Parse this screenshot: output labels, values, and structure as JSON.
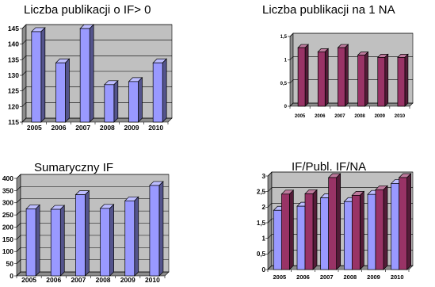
{
  "chart_data": [
    {
      "type": "bar",
      "title": "Liczba publikacji o IF> 0",
      "categories": [
        "2005",
        "2006",
        "2007",
        "2008",
        "2009",
        "2010"
      ],
      "values": [
        144,
        134,
        145,
        127,
        128,
        134
      ],
      "ylim": [
        115,
        145
      ],
      "yticks": [
        115,
        120,
        125,
        130,
        135,
        140,
        145
      ],
      "grid": true,
      "colors": [
        "#9999ff"
      ]
    },
    {
      "type": "bar",
      "title": "Liczba publikacji na 1 NA",
      "categories": [
        "2005",
        "2006",
        "2007",
        "2008",
        "2009",
        "2010"
      ],
      "values": [
        1.26,
        1.17,
        1.26,
        1.1,
        1.05,
        1.05
      ],
      "ylim": [
        0,
        1.5
      ],
      "yticks": [
        "0",
        "0,5",
        "1",
        "1,5"
      ],
      "grid": true,
      "colors": [
        "#993366"
      ]
    },
    {
      "type": "bar",
      "title": "Sumaryczny IF",
      "categories": [
        "2005",
        "2006",
        "2007",
        "2008",
        "2009",
        "2010"
      ],
      "values": [
        275,
        273,
        333,
        277,
        308,
        371
      ],
      "ylim": [
        0,
        400
      ],
      "yticks": [
        0,
        50,
        100,
        150,
        200,
        250,
        300,
        350,
        400
      ],
      "grid": true,
      "colors": [
        "#9999ff"
      ]
    },
    {
      "type": "bar",
      "title": "IF/Publ. IF/NA",
      "categories": [
        "2005",
        "2006",
        "2007",
        "2008",
        "2009",
        "2010"
      ],
      "series": [
        {
          "values": [
            1.9,
            2.03,
            2.3,
            2.18,
            2.41,
            2.76
          ]
        },
        {
          "values": [
            2.42,
            2.43,
            2.95,
            2.38,
            2.56,
            2.95
          ]
        }
      ],
      "ylim": [
        0,
        3
      ],
      "yticks": [
        "0",
        "0,5",
        "1",
        "1,5",
        "2",
        "2,5",
        "3"
      ],
      "grid": true,
      "colors": [
        "#9999ff",
        "#993366"
      ]
    }
  ]
}
